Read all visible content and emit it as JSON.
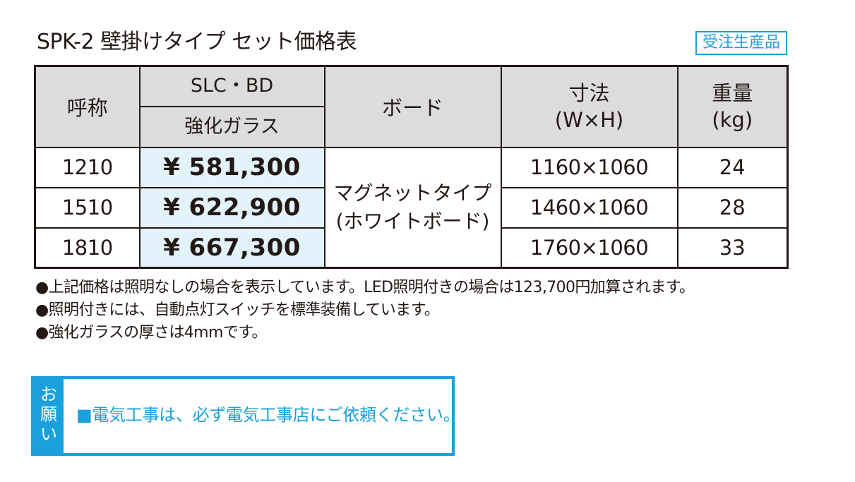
{
  "title": "SPK-2 壁掛けタイプ セット価格表",
  "badge": "受注生産品",
  "table": {
    "header": {
      "code": "呼称",
      "material_top": "SLC・BD",
      "material_bottom": "強化ガラス",
      "board": "ボード",
      "size_line1": "寸法",
      "size_line2": "(W×H)",
      "weight_line1": "重量",
      "weight_line2": "(kg)"
    },
    "board_value_line1": "マグネットタイプ",
    "board_value_line2": "(ホワイトボード)",
    "rows": [
      {
        "code": "1210",
        "price": "¥ 581,300",
        "size": "1160×1060",
        "weight": "24"
      },
      {
        "code": "1510",
        "price": "¥ 622,900",
        "size": "1460×1060",
        "weight": "28"
      },
      {
        "code": "1810",
        "price": "¥ 667,300",
        "size": "1760×1060",
        "weight": "33"
      }
    ]
  },
  "notes": [
    "●上記価格は照明なしの場合を表示しています。LED照明付きの場合は123,700円加算されます。",
    "●照明付きには、自動点灯スイッチを標準装備しています。",
    "●強化ガラスの厚さは4mmです。"
  ],
  "request": {
    "tag_chars": [
      "お",
      "願",
      "い"
    ],
    "text": "■電気工事は、必ず電気工事店にご依頼ください。"
  },
  "colors": {
    "accent": "#1aa0dc",
    "header_bg": "#dcdcdd",
    "price_bg": "#e3f3fb",
    "text": "#231815"
  }
}
